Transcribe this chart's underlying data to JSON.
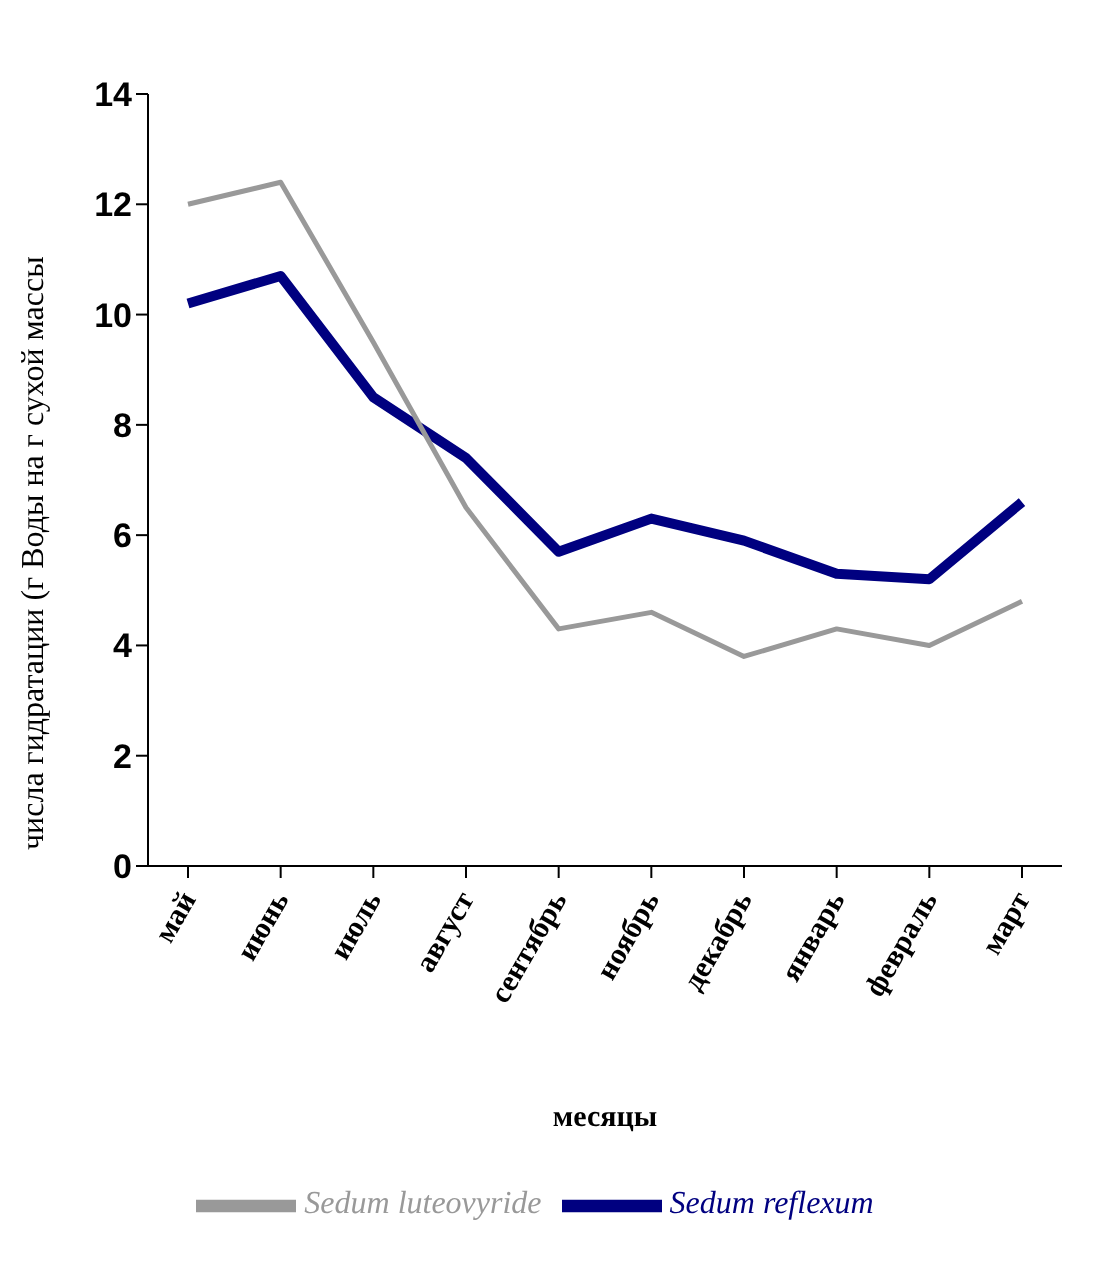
{
  "chart_data": {
    "type": "line",
    "xlabel": "месяцы",
    "ylabel": "числа гидратации (г Воды на г сухой массы",
    "categories": [
      "май",
      "июнь",
      "июль",
      "август",
      "сентябрь",
      "ноябрь",
      "декабрь",
      "январь",
      "февраль",
      "март"
    ],
    "series": [
      {
        "name": "Sedum reflexum",
        "color": "#000080",
        "values": [
          10.2,
          10.7,
          8.5,
          7.4,
          5.7,
          6.3,
          5.9,
          5.3,
          5.2,
          6.6
        ]
      },
      {
        "name": "Sedum  luteovyride",
        "color": "#999999",
        "values": [
          12.0,
          12.4,
          9.5,
          6.5,
          4.3,
          4.6,
          3.8,
          4.3,
          4.0,
          4.8
        ]
      }
    ],
    "ylim": [
      0,
      14
    ],
    "yticks": [
      0,
      2,
      4,
      6,
      8,
      10,
      12,
      14
    ],
    "grid": false,
    "legend": "bottom",
    "marker": "none",
    "line_style": "solid"
  }
}
